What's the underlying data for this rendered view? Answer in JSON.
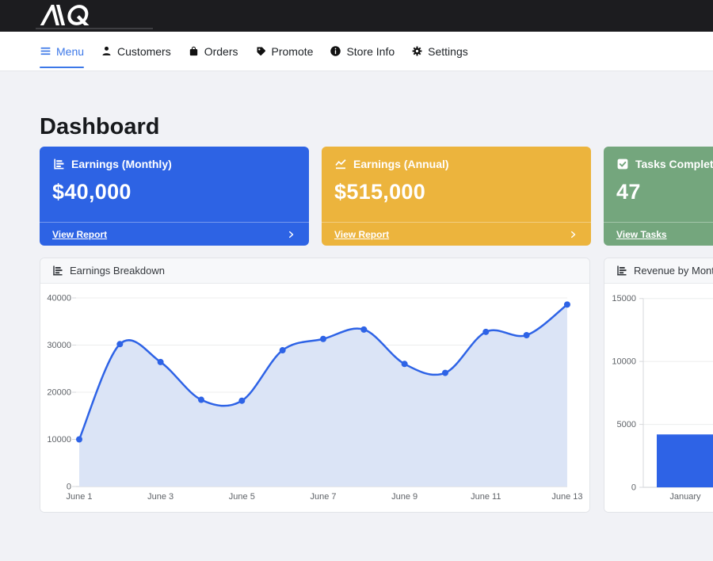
{
  "brand": {
    "logo_text": "AQ"
  },
  "nav": {
    "items": [
      {
        "label": "Menu",
        "icon": "hamburger-icon",
        "active": true
      },
      {
        "label": "Customers",
        "icon": "person-icon",
        "active": false
      },
      {
        "label": "Orders",
        "icon": "shopping-bag-icon",
        "active": false
      },
      {
        "label": "Promote",
        "icon": "tag-icon",
        "active": false
      },
      {
        "label": "Store Info",
        "icon": "info-circle-icon",
        "active": false
      },
      {
        "label": "Settings",
        "icon": "gear-icon",
        "active": false
      }
    ]
  },
  "page": {
    "title": "Dashboard"
  },
  "cards": [
    {
      "title": "Earnings (Monthly)",
      "value": "$40,000",
      "link_label": "View Report",
      "color": "#2d63e4",
      "icon": "bar-chart-icon"
    },
    {
      "title": "Earnings (Annual)",
      "value": "$515,000",
      "link_label": "View Report",
      "color": "#ecb43d",
      "icon": "line-chart-icon"
    },
    {
      "title": "Tasks Completed",
      "value": "47",
      "link_label": "View Tasks",
      "color": "#74a67d",
      "icon": "check-square-icon"
    }
  ],
  "panels": [
    {
      "title": "Earnings Breakdown",
      "icon": "bar-chart-icon"
    },
    {
      "title": "Revenue by Month",
      "icon": "bar-chart-icon"
    }
  ],
  "chart_data": [
    {
      "type": "area",
      "title": "Earnings Breakdown",
      "x": [
        "June 1",
        "June 2",
        "June 3",
        "June 4",
        "June 5",
        "June 6",
        "June 7",
        "June 8",
        "June 9",
        "June 10",
        "June 11",
        "June 12",
        "June 13"
      ],
      "values": [
        10000,
        30200,
        26400,
        18400,
        18200,
        28900,
        31300,
        33300,
        26000,
        24100,
        32800,
        32100,
        38600
      ],
      "x_ticks_shown": [
        "June 1",
        "June 3",
        "June 5",
        "June 7",
        "June 9",
        "June 11",
        "June 13"
      ],
      "ylim": [
        0,
        40000
      ],
      "yticks": [
        0,
        10000,
        20000,
        30000,
        40000
      ],
      "grid": true,
      "legend": "none",
      "line_color": "#2e63e6",
      "fill_color": "#dbe4f6",
      "point_color": "#2e63e6"
    },
    {
      "type": "bar",
      "title": "Revenue by Month",
      "categories": [
        "January"
      ],
      "values": [
        4200
      ],
      "ylim": [
        0,
        15000
      ],
      "yticks": [
        0,
        5000,
        10000,
        15000
      ],
      "grid": true,
      "legend": "none",
      "bar_color": "#2e63e6",
      "clipped_right": true
    }
  ]
}
